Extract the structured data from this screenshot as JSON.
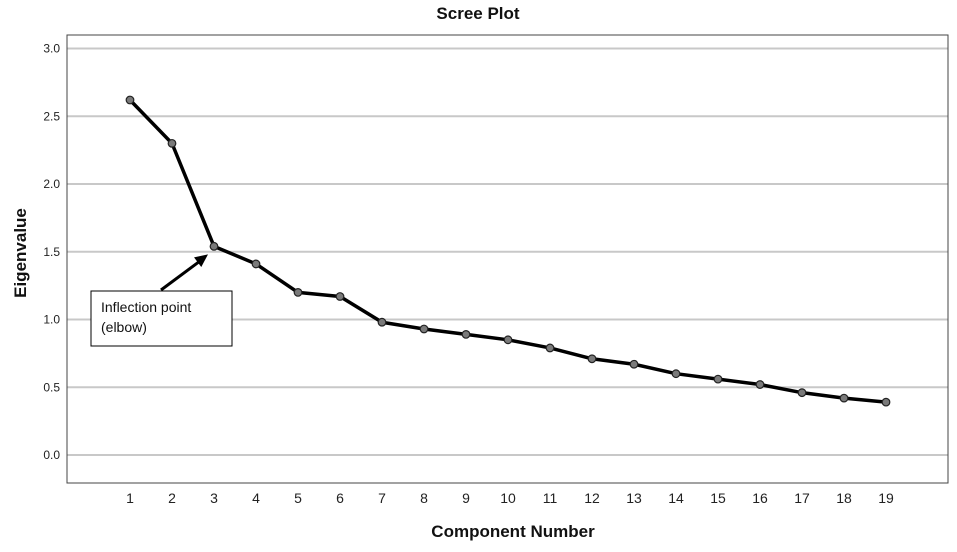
{
  "chart_data": {
    "type": "line",
    "title": "Scree Plot",
    "xlabel": "Component Number",
    "ylabel": "Eigenvalue",
    "ylim": [
      -0.2,
      3.1
    ],
    "yticks": [
      "0.0",
      "0.5",
      "1.0",
      "1.5",
      "2.0",
      "2.5",
      "3.0"
    ],
    "x": [
      1,
      2,
      3,
      4,
      5,
      6,
      7,
      8,
      9,
      10,
      11,
      12,
      13,
      14,
      15,
      16,
      17,
      18,
      19
    ],
    "series": [
      {
        "values": [
          2.62,
          2.3,
          1.54,
          1.41,
          1.2,
          1.17,
          0.98,
          0.93,
          0.89,
          0.85,
          0.79,
          0.71,
          0.67,
          0.6,
          0.56,
          0.52,
          0.46,
          0.42,
          0.39
        ]
      }
    ],
    "grid": true,
    "annotations": [
      {
        "text_lines": [
          "Inflection point",
          "(elbow)"
        ],
        "points_to_x": 3
      }
    ],
    "colors": {
      "line": "#000000",
      "marker": "#7a7a7a",
      "grid": "#c8c8c8"
    }
  }
}
